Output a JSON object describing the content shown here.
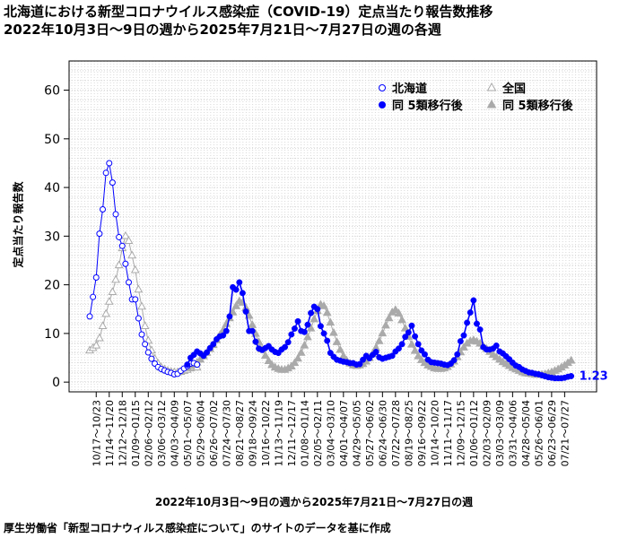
{
  "header": {
    "title": "北海道における新型コロナウイルス感染症（COVID-19）定点当たり報告数推移",
    "subtitle": "2022年10月3日～9日の週から2025年7月21日～7月27日の週の各週"
  },
  "footer": {
    "source": "厚生労働省「新型コロナウィルス感染症について」のサイトのデータを基に作成"
  },
  "chart_data": {
    "type": "line",
    "title": "北海道における新型コロナウイルス感染症（COVID-19）定点当たり報告数推移",
    "subtitle": "2022年10月3日～9日の週から2025年7月21日～7月27日の週の各週",
    "xlabel": "2022年10月3日～9日の週から2025年7月21日～7月27日の週",
    "ylabel": "定点当たり報告数",
    "ylim": [
      -2,
      66
    ],
    "yticks": [
      0,
      10,
      20,
      30,
      40,
      50,
      60
    ],
    "grid": true,
    "legend_position": "top-right",
    "last_value_label": "1.23",
    "x_tick_labels": [
      "10/17～10/23",
      "11/14～11/20",
      "12/12～12/18",
      "01/09～01/15",
      "02/06～02/12",
      "03/06～03/12",
      "04/03～04/09",
      "05/01～05/07",
      "05/29～06/04",
      "06/26～07/02",
      "07/24～07/30",
      "08/21～08/27",
      "09/18～09/24",
      "10/16～10/22",
      "11/13～11/19",
      "12/11～12/17",
      "01/08～01/14",
      "02/05～02/11",
      "03/04～03/10",
      "04/01～04/07",
      "04/29～05/05",
      "05/27～06/02",
      "06/24～06/30",
      "07/22～07/28",
      "08/19～08/25",
      "09/16～09/22",
      "10/14～10/20",
      "11/11～11/17",
      "12/09～12/15",
      "01/06～01/12",
      "02/03～02/09",
      "03/03～03/09",
      "03/31～04/06",
      "04/28～05/04",
      "05/26～06/01",
      "06/23～06/29",
      "07/21～07/27"
    ],
    "x_tick_week_index": [
      2,
      6,
      10,
      14,
      18,
      22,
      26,
      30,
      34,
      38,
      42,
      46,
      50,
      54,
      58,
      62,
      66,
      70,
      74,
      78,
      82,
      86,
      90,
      94,
      98,
      102,
      106,
      110,
      114,
      118,
      122,
      126,
      130,
      134,
      138,
      142,
      146
    ],
    "break_index": 30,
    "series": [
      {
        "name": "北海道",
        "color": "#0000ff",
        "values": [
          13.5,
          17.5,
          21.5,
          30.5,
          35.5,
          43,
          45,
          41,
          34.5,
          29.8,
          28,
          24.3,
          20.5,
          17,
          17,
          13.1,
          9.8,
          7.8,
          6.1,
          4.8,
          3.8,
          3.1,
          2.7,
          2.4,
          2.1,
          1.9,
          1.6,
          1.7,
          2.3,
          2.8,
          3.3,
          3.8,
          3.9,
          3.6
        ]
      },
      {
        "name": "全国",
        "color": "#aaaaaa",
        "values": [
          6.5,
          7.0,
          7.5,
          9,
          11.5,
          14,
          16.5,
          18.5,
          21,
          24,
          27.5,
          30,
          29,
          26,
          23,
          19,
          15.5,
          11.5,
          8.5,
          6.5,
          4.8,
          3.8,
          3.0,
          2.6,
          2.3,
          2.1,
          2.0,
          2.0,
          2.1,
          2.3,
          2.5,
          2.8,
          3.0,
          3.0
        ]
      },
      {
        "name": "同 5類移行後",
        "color": "#0000ff",
        "values": [
          3.6,
          5,
          5.6,
          6.3,
          5.9,
          5.4,
          6.1,
          7,
          7.8,
          8.8,
          9.4,
          9.6,
          10.5,
          13.5,
          19.5,
          19,
          20.5,
          18.3,
          14.5,
          10.5,
          10.5,
          8.3,
          6.9,
          6.6,
          7,
          7.4,
          6.7,
          6.2,
          6,
          6.7,
          7.2,
          8.2,
          9.8,
          11,
          12.5,
          10.5,
          10.3,
          11.8,
          14.2,
          15.5,
          15,
          11.5,
          10,
          8.5,
          6,
          5.2,
          4.6,
          4.4,
          4.2,
          4.1,
          3.9,
          3.9,
          3.6,
          3.7,
          4.6,
          5.4,
          4.9,
          5.6,
          6.2,
          5.1,
          4.8,
          5.0,
          5.2,
          5.4,
          6.3,
          6.9,
          7.8,
          9.3,
          10.2,
          11.6,
          9.4,
          7.8,
          6.5,
          5.7,
          4.6,
          4.1,
          4.0,
          3.9,
          3.8,
          3.6,
          3.5,
          3.8,
          4.5,
          5.7,
          8.4,
          9.6,
          12.2,
          14.3,
          16.8,
          12.0,
          10.8,
          7.2,
          6.7,
          6.7,
          6.9,
          7.5,
          6.3,
          5.9,
          5.3,
          4.7,
          4.0,
          3.4,
          3.1,
          2.6,
          2.3,
          2.0,
          1.9,
          1.7,
          1.6,
          1.4,
          1.2,
          1.0,
          0.9,
          0.8,
          0.8,
          0.8,
          0.9,
          1.1,
          1.23
        ]
      },
      {
        "name": "同 5類移行後",
        "color": "#aaaaaa",
        "values": [
          3.0,
          3.3,
          3.6,
          4.0,
          4.6,
          5.3,
          6.0,
          6.8,
          7.6,
          8.6,
          9.6,
          10.6,
          11.9,
          13.1,
          14.3,
          15.6,
          16.6,
          16.3,
          15.2,
          13.6,
          11.7,
          9.9,
          8.2,
          6.7,
          5.4,
          4.3,
          3.5,
          3.0,
          2.7,
          2.5,
          2.5,
          2.8,
          3.2,
          3.9,
          4.8,
          6.0,
          7.5,
          9.2,
          11.0,
          12.9,
          14.6,
          15.9,
          15.6,
          14.2,
          12.2,
          10.1,
          8.2,
          6.6,
          5.3,
          4.4,
          3.8,
          3.4,
          3.3,
          3.4,
          3.7,
          4.2,
          4.9,
          5.8,
          7.0,
          8.4,
          10.0,
          11.6,
          13.1,
          14.3,
          14.8,
          14.1,
          12.7,
          11.0,
          9.3,
          7.7,
          6.4,
          5.3,
          4.5,
          3.9,
          3.4,
          3.1,
          2.8,
          2.7,
          2.7,
          2.8,
          3.1,
          3.6,
          4.2,
          5.1,
          6.1,
          7.1,
          7.9,
          8.4,
          8.6,
          8.3,
          7.9,
          7.3,
          6.8,
          6.2,
          5.6,
          5.1,
          4.6,
          4.1,
          3.7,
          3.3,
          2.9,
          2.6,
          2.3,
          2.0,
          1.8,
          1.7,
          1.6,
          1.5,
          1.5,
          1.5,
          1.6,
          1.8,
          2.0,
          2.3,
          2.6,
          3.0,
          3.4,
          3.9,
          4.4
        ]
      }
    ]
  }
}
